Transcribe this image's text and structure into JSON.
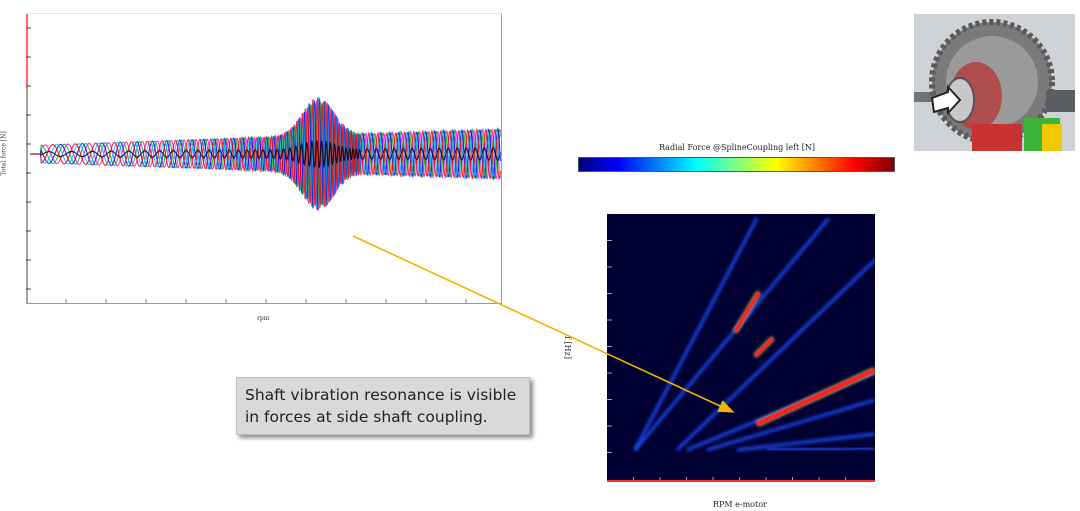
{
  "time_signal": {
    "ylabel": "Total force [N]",
    "xlabel": "rpm"
  },
  "colorbar": {
    "title": "Radial Force @SplineCoupling left [N]",
    "colors": [
      "#00007f",
      "#0000ff",
      "#0080ff",
      "#00ffff",
      "#80ff80",
      "#ffff00",
      "#ff8000",
      "#ff0000",
      "#7f0000"
    ]
  },
  "campbell": {
    "ylabel": "f [Hz]",
    "xlabel": "RPM e-motor",
    "background_color": "#000032",
    "order_line_color": "#1e50ff",
    "resonance_color": "#ff2020"
  },
  "callout": {
    "line1": "Shaft vibration resonance is visible",
    "line2": "in forces at side shaft coupling.",
    "arrow_color": "#f0b400"
  },
  "image": {
    "name": "gearbox-rendering",
    "colors": [
      "#808080",
      "#c83232",
      "#3cb43c",
      "#f0c800"
    ]
  },
  "chart_data": [
    {
      "type": "line",
      "title": "",
      "xlabel": "rpm",
      "ylabel": "Total force [N]",
      "series_colors": [
        "#ff00ff",
        "#00c000",
        "#0000ff",
        "#00c0ff",
        "#ff0000",
        "#000000"
      ],
      "envelope_note": "multiple overlapping oscillating signals; amplitude peaks near 60% of the rpm range"
    },
    {
      "type": "heatmap",
      "title": "",
      "xlabel": "RPM e-motor",
      "ylabel": "f [Hz]",
      "colorbar_label": "Radial Force @SplineCoupling left [N]"
    }
  ]
}
